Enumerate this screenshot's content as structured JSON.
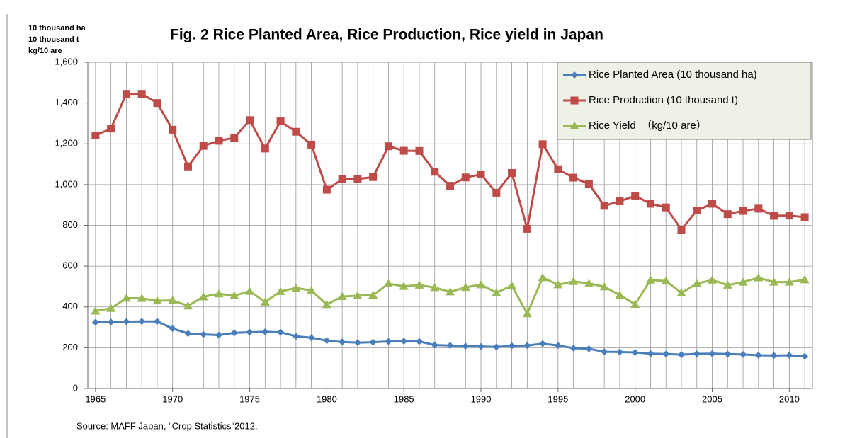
{
  "chart_data": {
    "type": "line",
    "title": "Fig. 2  Rice Planted Area, Rice Production, Rice yield in Japan",
    "y_label": [
      "10 thousand  ha",
      "10 thousand  t",
      "kg/10 are"
    ],
    "source": "Source: MAFF Japan, \"Crop Statistics\"2012.",
    "x": [
      1965,
      1966,
      1967,
      1968,
      1969,
      1970,
      1971,
      1972,
      1973,
      1974,
      1975,
      1976,
      1977,
      1978,
      1979,
      1980,
      1981,
      1982,
      1983,
      1984,
      1985,
      1986,
      1987,
      1988,
      1989,
      1990,
      1991,
      1992,
      1993,
      1994,
      1995,
      1996,
      1997,
      1998,
      1999,
      2000,
      2001,
      2002,
      2003,
      2004,
      2005,
      2006,
      2007,
      2008,
      2009,
      2010,
      2011
    ],
    "xlim": [
      1964.5,
      2011.5
    ],
    "xticks": [
      1965,
      1970,
      1975,
      1980,
      1985,
      1990,
      1995,
      2000,
      2005,
      2010
    ],
    "ylim": [
      0,
      1600
    ],
    "yticks": [
      0,
      200,
      400,
      600,
      800,
      {
        "value": 1000,
        "label": "1,000"
      },
      {
        "value": 1200,
        "label": "1,200"
      },
      {
        "value": 1400,
        "label": "1,400"
      },
      {
        "value": 1600,
        "label": "1,600"
      }
    ],
    "grid": true,
    "legend": "upper right",
    "series": [
      {
        "name": "Rice Planted Area (10 thousand ha)",
        "color": "#4a7ebb",
        "marker": "diamond",
        "values": [
          325,
          326,
          328,
          329,
          329,
          294,
          270,
          265,
          262,
          273,
          276,
          278,
          276,
          256,
          249,
          235,
          228,
          225,
          227,
          231,
          232,
          231,
          213,
          211,
          208,
          206,
          204,
          209,
          211,
          220,
          211,
          198,
          195,
          180,
          179,
          177,
          171,
          169,
          166,
          170,
          171,
          169,
          167,
          163,
          162,
          163,
          158
        ]
      },
      {
        "name": "Rice Production (10 thousand t)",
        "color": "#be4b48",
        "marker": "square",
        "values": [
          1241,
          1275,
          1445,
          1445,
          1400,
          1269,
          1089,
          1190,
          1215,
          1229,
          1316,
          1177,
          1310,
          1259,
          1196,
          975,
          1026,
          1027,
          1037,
          1188,
          1166,
          1165,
          1063,
          994,
          1035,
          1050,
          960,
          1057,
          783,
          1198,
          1075,
          1034,
          1003,
          896,
          918,
          945,
          906,
          888,
          779,
          873,
          906,
          855,
          871,
          882,
          847,
          848,
          840
        ]
      },
      {
        "name": "Rice Yield　（kg/10 are）",
        "color": "#98b954",
        "marker": "triangle",
        "values": [
          380,
          393,
          443,
          442,
          430,
          432,
          405,
          450,
          464,
          455,
          477,
          424,
          476,
          493,
          480,
          412,
          451,
          455,
          458,
          514,
          501,
          507,
          495,
          474,
          496,
          509,
          470,
          504,
          367,
          544,
          509,
          525,
          515,
          499,
          458,
          413,
          532,
          527,
          469,
          514,
          532,
          507,
          522,
          543,
          522,
          522,
          533
        ]
      }
    ]
  }
}
